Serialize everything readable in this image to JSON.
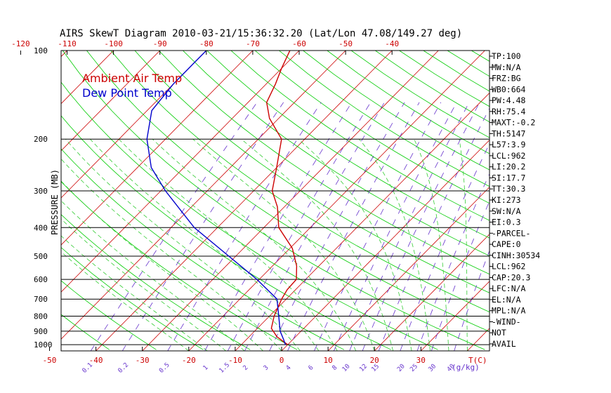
{
  "chart_data": {
    "type": "line",
    "title": "AIRS SkewT Diagram  2010-03-21/15:36:32.20  (Lat/Lon 47.08/149.27 deg)",
    "ylabel": "PRESSURE (MB)",
    "xlabel": "T(C)",
    "mixing_ratio_unit": "(g/kg)",
    "pressure_levels": [
      100,
      200,
      300,
      400,
      500,
      600,
      700,
      800,
      900,
      1000
    ],
    "pressure_range": [
      100,
      1050
    ],
    "bottom_temp_ticks": [
      -50,
      -40,
      -30,
      -20,
      -10,
      0,
      10,
      20,
      30
    ],
    "top_temp_ticks": [
      -120,
      -110,
      -100,
      -90,
      -80,
      -70,
      -60,
      -50,
      -40
    ],
    "mixing_ratio_labels": [
      "0.1",
      "0.2",
      "0.5",
      "1",
      "1.5",
      "2",
      "3",
      "4",
      "6",
      "8",
      "10",
      "12",
      "15",
      "20",
      "25",
      "30",
      "40"
    ],
    "legend": [
      {
        "label": "Ambient Air Temp",
        "color": "#cc0000"
      },
      {
        "label": "Dew Point Temp",
        "color": "#0000cc"
      }
    ],
    "series": [
      {
        "name": "Ambient Air Temp",
        "color": "#cc0000",
        "points": [
          {
            "p": 1000,
            "t": 0
          },
          {
            "p": 970,
            "t": -2
          },
          {
            "p": 940,
            "t": -4
          },
          {
            "p": 880,
            "t": -7
          },
          {
            "p": 800,
            "t": -9
          },
          {
            "p": 700,
            "t": -11
          },
          {
            "p": 650,
            "t": -11.8
          },
          {
            "p": 600,
            "t": -12
          },
          {
            "p": 540,
            "t": -14.8
          },
          {
            "p": 470,
            "t": -19.5
          },
          {
            "p": 400,
            "t": -26.8
          },
          {
            "p": 340,
            "t": -31.5
          },
          {
            "p": 300,
            "t": -36
          },
          {
            "p": 250,
            "t": -40
          },
          {
            "p": 200,
            "t": -45
          },
          {
            "p": 170,
            "t": -52
          },
          {
            "p": 150,
            "t": -56
          },
          {
            "p": 130,
            "t": -58
          },
          {
            "p": 115,
            "t": -60
          },
          {
            "p": 100,
            "t": -62
          }
        ]
      },
      {
        "name": "Dew Point Temp",
        "color": "#0000cc",
        "points": [
          {
            "p": 1000,
            "t": -0.5
          },
          {
            "p": 960,
            "t": -2
          },
          {
            "p": 900,
            "t": -4.5
          },
          {
            "p": 800,
            "t": -8
          },
          {
            "p": 700,
            "t": -12
          },
          {
            "p": 600,
            "t": -20.5
          },
          {
            "p": 500,
            "t": -31.5
          },
          {
            "p": 400,
            "t": -45
          },
          {
            "p": 300,
            "t": -59
          },
          {
            "p": 250,
            "t": -67
          },
          {
            "p": 200,
            "t": -74
          },
          {
            "p": 160,
            "t": -79
          },
          {
            "p": 130,
            "t": -80
          },
          {
            "p": 110,
            "t": -80
          },
          {
            "p": 100,
            "t": -80
          }
        ]
      }
    ]
  },
  "indices": [
    "TP:100",
    "MW:N/A",
    "FRZ:BG",
    "WB0:664",
    "PW:4.48",
    "RH:75.4",
    "MAXT:-0.2",
    "TH:5147",
    "L57:3.9",
    "LCL:962",
    "LI:20.2",
    "SI:17.7",
    "TT:30.3",
    "KI:273",
    "SW:N/A",
    "EI:0.3",
    "-PARCEL-",
    "CAPE:0",
    "CINH:30534",
    "LCL:962",
    "CAP:20.3",
    "LFC:N/A",
    "EL:N/A",
    "MPL:N/A",
    "-WIND-",
    "NOT",
    "AVAIL"
  ],
  "colors": {
    "isotherm": "#cc0000",
    "dry_adiabat": "#00cc00",
    "moist_adiabat": "#33cc33",
    "mixing_ratio": "#6633cc",
    "axis_top": "#cc0000",
    "axis_bottom": "#cc0000"
  }
}
